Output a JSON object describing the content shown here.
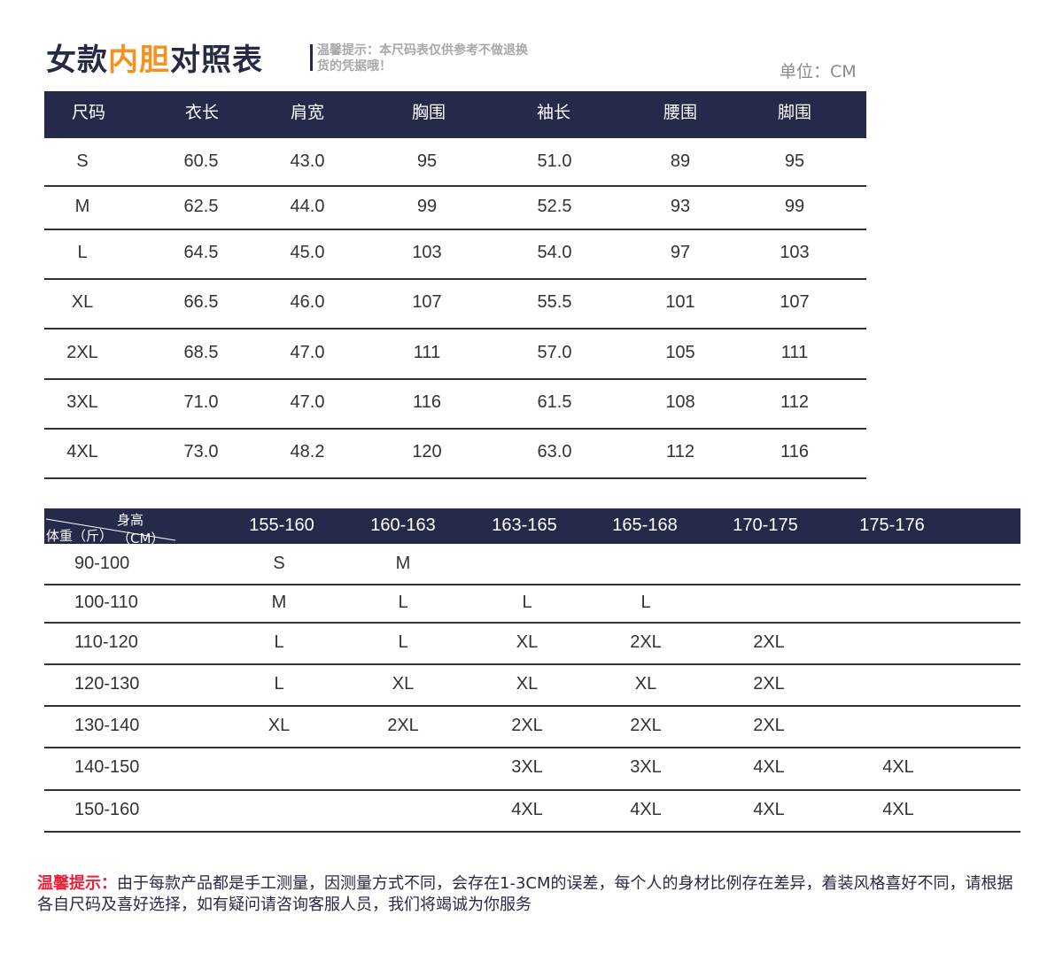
{
  "title": {
    "part1": "女款",
    "highlight": "内胆",
    "part2": "对照表"
  },
  "tip": "温馨提示：本尺码表仅供参考不做退换货的凭据哦！",
  "unit": "单位：CM",
  "colors": {
    "header_bg": "#262a4a",
    "accent": "#f7901e",
    "tip_red": "#e8223a"
  },
  "size_table": {
    "headers": [
      "尺码",
      "衣长",
      "肩宽",
      "胸围",
      "袖长",
      "腰围",
      "脚围"
    ],
    "rows": [
      [
        "S",
        "60.5",
        "43.0",
        "95",
        "51.0",
        "89",
        "95"
      ],
      [
        "M",
        "62.5",
        "44.0",
        "99",
        "52.5",
        "93",
        "99"
      ],
      [
        "L",
        "64.5",
        "45.0",
        "103",
        "54.0",
        "97",
        "103"
      ],
      [
        "XL",
        "66.5",
        "46.0",
        "107",
        "55.5",
        "101",
        "107"
      ],
      [
        "2XL",
        "68.5",
        "47.0",
        "111",
        "57.0",
        "105",
        "111"
      ],
      [
        "3XL",
        "71.0",
        "47.0",
        "116",
        "61.5",
        "108",
        "112"
      ],
      [
        "4XL",
        "73.0",
        "48.2",
        "120",
        "63.0",
        "112",
        "116"
      ]
    ]
  },
  "fit_table": {
    "corner_top": "身高（CM）",
    "corner_bottom": "体重（斤）",
    "headers": [
      "155-160",
      "160-163",
      "163-165",
      "165-168",
      "170-175",
      "175-176"
    ],
    "rows": [
      [
        "90-100",
        "S",
        "M",
        "",
        "",
        "",
        ""
      ],
      [
        "100-110",
        "M",
        "L",
        "L",
        "L",
        "",
        ""
      ],
      [
        "110-120",
        "L",
        "L",
        "XL",
        "2XL",
        "2XL",
        ""
      ],
      [
        "120-130",
        "L",
        "XL",
        "XL",
        "XL",
        "2XL",
        ""
      ],
      [
        "130-140",
        "XL",
        "2XL",
        "2XL",
        "2XL",
        "2XL",
        ""
      ],
      [
        "140-150",
        "",
        "",
        "3XL",
        "3XL",
        "4XL",
        "4XL"
      ],
      [
        "150-160",
        "",
        "",
        "4XL",
        "4XL",
        "4XL",
        "4XL"
      ]
    ]
  },
  "note": {
    "label": "温馨提示：",
    "text": "由于每款产品都是手工测量，因测量方式不同，会存在1-3CM的误差，每个人的身材比例存在差异，着装风格喜好不同，请根据各自尺码及喜好选择，如有疑问请咨询客服人员，我们将竭诚为你服务"
  }
}
